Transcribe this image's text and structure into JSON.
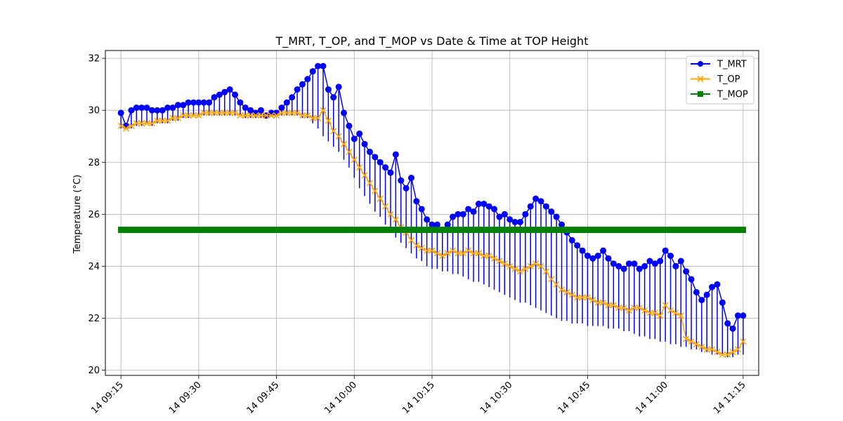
{
  "chart_data": {
    "type": "line",
    "title": "T_MRT, T_OP, and T_MOP vs Date & Time at TOP Height",
    "xlabel": "",
    "ylabel": "Temperature (°C)",
    "xlim": [
      "14 09:12",
      "14 11:18"
    ],
    "ylim": [
      19.8,
      32.3
    ],
    "xticks": [
      "14 09:15",
      "14 09:30",
      "14 09:45",
      "14 10:00",
      "14 10:15",
      "14 10:30",
      "14 10:45",
      "14 11:00",
      "14 11:15"
    ],
    "yticks": [
      20,
      22,
      24,
      26,
      28,
      30,
      32
    ],
    "grid": true,
    "legend_position": "top-right",
    "series": [
      {
        "name": "T_MRT",
        "color": "#0000ff",
        "marker": "circle",
        "x": [
          "09:15",
          "09:16",
          "09:17",
          "09:18",
          "09:19",
          "09:20",
          "09:21",
          "09:22",
          "09:23",
          "09:24",
          "09:25",
          "09:26",
          "09:27",
          "09:28",
          "09:29",
          "09:30",
          "09:31",
          "09:32",
          "09:33",
          "09:34",
          "09:35",
          "09:36",
          "09:37",
          "09:38",
          "09:39",
          "09:40",
          "09:41",
          "09:42",
          "09:43",
          "09:44",
          "09:45",
          "09:46",
          "09:47",
          "09:48",
          "09:49",
          "09:50",
          "09:51",
          "09:52",
          "09:53",
          "09:54",
          "09:55",
          "09:56",
          "09:57",
          "09:58",
          "09:59",
          "10:00",
          "10:01",
          "10:02",
          "10:03",
          "10:04",
          "10:05",
          "10:06",
          "10:07",
          "10:08",
          "10:09",
          "10:10",
          "10:11",
          "10:12",
          "10:13",
          "10:14",
          "10:15",
          "10:16",
          "10:17",
          "10:18",
          "10:19",
          "10:20",
          "10:21",
          "10:22",
          "10:23",
          "10:24",
          "10:25",
          "10:26",
          "10:27",
          "10:28",
          "10:29",
          "10:30",
          "10:31",
          "10:32",
          "10:33",
          "10:34",
          "10:35",
          "10:36",
          "10:37",
          "10:38",
          "10:39",
          "10:40",
          "10:41",
          "10:42",
          "10:43",
          "10:44",
          "10:45",
          "10:46",
          "10:47",
          "10:48",
          "10:49",
          "10:50",
          "10:51",
          "10:52",
          "10:53",
          "10:54",
          "10:55",
          "10:56",
          "10:57",
          "10:58",
          "10:59",
          "11:00",
          "11:01",
          "11:02",
          "11:03",
          "11:04",
          "11:05",
          "11:06",
          "11:07",
          "11:08",
          "11:09",
          "11:10",
          "11:11",
          "11:12",
          "11:13",
          "11:14",
          "11:15"
        ],
        "y": [
          29.9,
          29.4,
          30.0,
          30.1,
          30.1,
          30.1,
          30.0,
          30.0,
          30.0,
          30.1,
          30.1,
          30.2,
          30.2,
          30.3,
          30.3,
          30.3,
          30.3,
          30.3,
          30.5,
          30.6,
          30.7,
          30.8,
          30.6,
          30.3,
          30.1,
          30.0,
          29.9,
          30.0,
          29.8,
          29.9,
          29.9,
          30.1,
          30.3,
          30.5,
          30.8,
          31.0,
          31.2,
          31.5,
          31.7,
          31.7,
          30.8,
          30.5,
          30.9,
          29.9,
          29.4,
          28.9,
          29.1,
          28.7,
          28.4,
          28.2,
          28.0,
          27.8,
          27.6,
          28.3,
          27.3,
          27.0,
          27.4,
          26.5,
          26.2,
          25.8,
          25.6,
          25.6,
          25.4,
          25.6,
          25.9,
          26.0,
          26.0,
          26.2,
          26.1,
          26.4,
          26.4,
          26.3,
          26.2,
          25.9,
          26.0,
          25.8,
          25.7,
          25.7,
          26.0,
          26.3,
          26.6,
          26.5,
          26.3,
          26.1,
          25.9,
          25.6,
          25.3,
          25.0,
          24.8,
          24.6,
          24.4,
          24.3,
          24.4,
          24.6,
          24.3,
          24.1,
          24.0,
          23.9,
          24.1,
          24.1,
          23.9,
          24.0,
          24.2,
          24.1,
          24.2,
          24.6,
          24.4,
          24.0,
          24.2,
          23.8,
          23.5,
          23.0,
          22.7,
          22.9,
          23.2,
          23.3,
          22.6,
          21.8,
          21.6,
          22.1,
          22.1
        ],
        "y_low": [
          29.3,
          29.3,
          29.3,
          29.4,
          29.4,
          29.5,
          29.4,
          29.5,
          29.5,
          29.5,
          29.6,
          29.6,
          29.7,
          29.7,
          29.8,
          29.8,
          29.8,
          29.8,
          29.8,
          29.8,
          29.8,
          29.8,
          29.8,
          29.8,
          29.7,
          29.7,
          29.7,
          29.7,
          29.7,
          29.8,
          29.8,
          29.8,
          29.8,
          29.8,
          29.8,
          29.7,
          29.7,
          29.5,
          29.3,
          29.0,
          28.8,
          28.6,
          28.4,
          28.1,
          27.8,
          27.4,
          27.0,
          26.7,
          26.4,
          26.1,
          25.9,
          25.6,
          25.4,
          25.1,
          24.9,
          24.7,
          24.5,
          24.3,
          24.2,
          24.0,
          23.9,
          23.9,
          23.8,
          23.8,
          23.7,
          23.7,
          23.6,
          23.5,
          23.4,
          23.4,
          23.3,
          23.2,
          23.1,
          23.0,
          22.9,
          22.8,
          22.7,
          22.6,
          22.6,
          22.5,
          22.4,
          22.3,
          22.2,
          22.1,
          22.0,
          21.9,
          21.9,
          21.8,
          21.8,
          21.8,
          21.7,
          21.7,
          21.7,
          21.7,
          21.6,
          21.6,
          21.6,
          21.5,
          21.5,
          21.4,
          21.3,
          21.3,
          21.2,
          21.2,
          21.1,
          21.1,
          21.0,
          21.0,
          20.9,
          20.9,
          20.8,
          20.8,
          20.7,
          20.7,
          20.6,
          20.6,
          20.6,
          20.5,
          20.5,
          20.6,
          20.6
        ]
      },
      {
        "name": "T_OP",
        "color": "#ffa500",
        "marker": "x",
        "x": [
          "09:15",
          "09:16",
          "09:17",
          "09:18",
          "09:19",
          "09:20",
          "09:21",
          "09:22",
          "09:23",
          "09:24",
          "09:25",
          "09:26",
          "09:27",
          "09:28",
          "09:29",
          "09:30",
          "09:31",
          "09:32",
          "09:33",
          "09:34",
          "09:35",
          "09:36",
          "09:37",
          "09:38",
          "09:39",
          "09:40",
          "09:41",
          "09:42",
          "09:43",
          "09:44",
          "09:45",
          "09:46",
          "09:47",
          "09:48",
          "09:49",
          "09:50",
          "09:51",
          "09:52",
          "09:53",
          "09:54",
          "09:55",
          "09:56",
          "09:57",
          "09:58",
          "09:59",
          "10:00",
          "10:01",
          "10:02",
          "10:03",
          "10:04",
          "10:05",
          "10:06",
          "10:07",
          "10:08",
          "10:09",
          "10:10",
          "10:11",
          "10:12",
          "10:13",
          "10:14",
          "10:15",
          "10:16",
          "10:17",
          "10:18",
          "10:19",
          "10:20",
          "10:21",
          "10:22",
          "10:23",
          "10:24",
          "10:25",
          "10:26",
          "10:27",
          "10:28",
          "10:29",
          "10:30",
          "10:31",
          "10:32",
          "10:33",
          "10:34",
          "10:35",
          "10:36",
          "10:37",
          "10:38",
          "10:39",
          "10:40",
          "10:41",
          "10:42",
          "10:43",
          "10:44",
          "10:45",
          "10:46",
          "10:47",
          "10:48",
          "10:49",
          "10:50",
          "10:51",
          "10:52",
          "10:53",
          "10:54",
          "10:55",
          "10:56",
          "10:57",
          "10:58",
          "10:59",
          "11:00",
          "11:01",
          "11:02",
          "11:03",
          "11:04",
          "11:05",
          "11:06",
          "11:07",
          "11:08",
          "11:09",
          "11:10",
          "11:11",
          "11:12",
          "11:13",
          "11:14",
          "11:15"
        ],
        "y": [
          29.4,
          29.3,
          29.4,
          29.5,
          29.5,
          29.5,
          29.5,
          29.6,
          29.6,
          29.6,
          29.7,
          29.7,
          29.8,
          29.8,
          29.8,
          29.8,
          29.9,
          29.9,
          29.9,
          29.9,
          29.9,
          29.9,
          29.9,
          29.8,
          29.8,
          29.8,
          29.8,
          29.8,
          29.8,
          29.8,
          29.8,
          29.9,
          29.9,
          29.9,
          29.9,
          29.8,
          29.8,
          29.7,
          29.7,
          30.0,
          29.6,
          29.2,
          29.0,
          28.7,
          28.4,
          28.1,
          27.8,
          27.5,
          27.2,
          26.9,
          26.6,
          26.3,
          26.0,
          25.8,
          25.5,
          25.3,
          25.0,
          24.8,
          24.7,
          24.6,
          24.6,
          24.5,
          24.4,
          24.5,
          24.6,
          24.5,
          24.5,
          24.6,
          24.5,
          24.5,
          24.4,
          24.4,
          24.3,
          24.2,
          24.1,
          24.0,
          23.9,
          23.8,
          23.9,
          24.0,
          24.1,
          24.0,
          23.8,
          23.5,
          23.3,
          23.1,
          23.0,
          22.9,
          22.8,
          22.8,
          22.8,
          22.7,
          22.6,
          22.6,
          22.5,
          22.5,
          22.4,
          22.4,
          22.3,
          22.4,
          22.4,
          22.3,
          22.2,
          22.2,
          22.1,
          22.5,
          22.3,
          22.2,
          22.1,
          21.2,
          21.1,
          21.0,
          20.9,
          20.8,
          20.8,
          20.7,
          20.6,
          20.6,
          20.7,
          20.8,
          21.1
        ]
      },
      {
        "name": "T_MOP",
        "color": "#008000",
        "marker": "square",
        "x": [
          "09:15",
          "09:20",
          "09:25",
          "09:30",
          "09:35",
          "09:40",
          "09:45",
          "09:50",
          "09:55",
          "10:00",
          "10:05",
          "10:10",
          "10:15",
          "10:20",
          "10:25",
          "10:30",
          "10:35",
          "10:40",
          "10:45",
          "10:50",
          "10:55",
          "11:00",
          "11:05",
          "11:10",
          "11:15"
        ],
        "y": [
          25.4,
          25.4,
          25.4,
          25.4,
          25.4,
          25.4,
          25.4,
          25.4,
          25.4,
          25.4,
          25.4,
          25.4,
          25.4,
          25.4,
          25.4,
          25.4,
          25.4,
          25.4,
          25.4,
          25.4,
          25.4,
          25.4,
          25.4,
          25.4,
          25.4
        ]
      }
    ]
  }
}
